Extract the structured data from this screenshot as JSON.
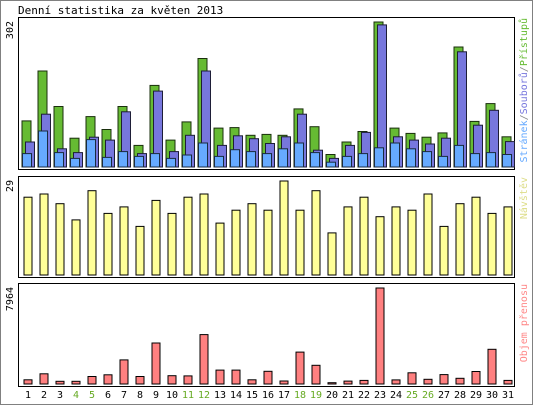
{
  "chart_data": {
    "type": "bar",
    "title": "Denní statistika za květen 2013",
    "categories": [
      "1",
      "2",
      "3",
      "4",
      "5",
      "6",
      "7",
      "8",
      "9",
      "10",
      "11",
      "12",
      "13",
      "14",
      "15",
      "16",
      "17",
      "18",
      "19",
      "20",
      "21",
      "22",
      "23",
      "24",
      "25",
      "26",
      "27",
      "28",
      "29",
      "30",
      "31"
    ],
    "weekend_categories": [
      "4",
      "5",
      "11",
      "12",
      "18",
      "19",
      "25",
      "26"
    ],
    "panels": [
      {
        "id": "hits",
        "ymax_label": "302",
        "ymax": 302,
        "legend": [
          {
            "text": "Stránek",
            "color": "#66aaff"
          },
          {
            "text": "/",
            "color": "#888888"
          },
          {
            "text": "Souborů",
            "color": "#7777dd"
          },
          {
            "text": "/",
            "color": "#888888"
          },
          {
            "text": "Přístupů",
            "color": "#66bb33"
          }
        ],
        "series": [
          {
            "name": "Přístupů",
            "color": "#66bb33",
            "values": [
              96,
              200,
              126,
              60,
              105,
              78,
              126,
              45,
              170,
              56,
              94,
              226,
              81,
              82,
              66,
              68,
              66,
              121,
              84,
              26,
              52,
              74,
              302,
              81,
              70,
              62,
              71,
              250,
              95,
              132,
              63
            ]
          },
          {
            "name": "Souborů",
            "color": "#7777dd",
            "values": [
              52,
              110,
              38,
              30,
              62,
              56,
              115,
              28,
              158,
              32,
              66,
              200,
              45,
              65,
              59,
              49,
              63,
              110,
              35,
              18,
              45,
              72,
              296,
              63,
              56,
              48,
              60,
              240,
              87,
              118,
              53
            ]
          },
          {
            "name": "Stránek",
            "color": "#66aaff",
            "values": [
              28,
              75,
              30,
              18,
              57,
              20,
              32,
              22,
              28,
              18,
              25,
              50,
              22,
              36,
              32,
              28,
              38,
              50,
              30,
              10,
              22,
              28,
              40,
              50,
              38,
              32,
              22,
              45,
              28,
              30,
              26
            ]
          }
        ]
      },
      {
        "id": "visits",
        "ymax_label": "29",
        "ymax": 29,
        "legend": [
          {
            "text": "Návštěv",
            "color": "#dddd88"
          }
        ],
        "series": [
          {
            "name": "Návštěv",
            "color": "#ffff99",
            "values": [
              24,
              25,
              22,
              17,
              26,
              19,
              21,
              15,
              23,
              19,
              24,
              25,
              16,
              20,
              22,
              20,
              29,
              20,
              26,
              13,
              21,
              24,
              18,
              21,
              20,
              25,
              15,
              22,
              24,
              19,
              21
            ]
          }
        ]
      },
      {
        "id": "traffic",
        "ymax_label": "7964",
        "ymax": 7964,
        "legend": [
          {
            "text": "Objem přenosu",
            "color": "#ff8888"
          }
        ],
        "series": [
          {
            "name": "Objem přenosu",
            "color": "#ff8080",
            "values": [
              350,
              850,
              220,
              220,
              620,
              760,
              2000,
              620,
              3400,
              690,
              670,
              4100,
              1150,
              1150,
              350,
              1050,
              250,
              2650,
              1550,
              110,
              240,
              300,
              7964,
              340,
              930,
              390,
              780,
              470,
              1040,
              2880,
              300
            ]
          }
        ]
      }
    ]
  }
}
